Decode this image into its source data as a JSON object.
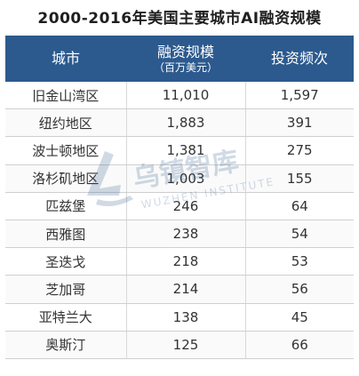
{
  "title": "2000-2016年美国主要城市AI融资规模",
  "table": {
    "headers": {
      "city": "城市",
      "funding": "融资规模",
      "funding_unit": "（百万美元）",
      "frequency": "投资频次"
    },
    "rows": [
      {
        "city": "旧金山湾区",
        "funding": "11,010",
        "frequency": "1,597"
      },
      {
        "city": "纽约地区",
        "funding": "1,883",
        "frequency": "391"
      },
      {
        "city": "波士顿地区",
        "funding": "1,381",
        "frequency": "275"
      },
      {
        "city": "洛杉矶地区",
        "funding": "1,003",
        "frequency": "155"
      },
      {
        "city": "匹兹堡",
        "funding": "246",
        "frequency": "64"
      },
      {
        "city": "西雅图",
        "funding": "238",
        "frequency": "54"
      },
      {
        "city": "圣迭戈",
        "funding": "218",
        "frequency": "53"
      },
      {
        "city": "芝加哥",
        "funding": "214",
        "frequency": "56"
      },
      {
        "city": "亚特兰大",
        "funding": "138",
        "frequency": "45"
      },
      {
        "city": "奥斯汀",
        "funding": "125",
        "frequency": "66"
      }
    ]
  },
  "watermark": {
    "name": "乌镇智库",
    "english": "WUZHEN INSTITUTE",
    "color": "#2c5a8e"
  }
}
